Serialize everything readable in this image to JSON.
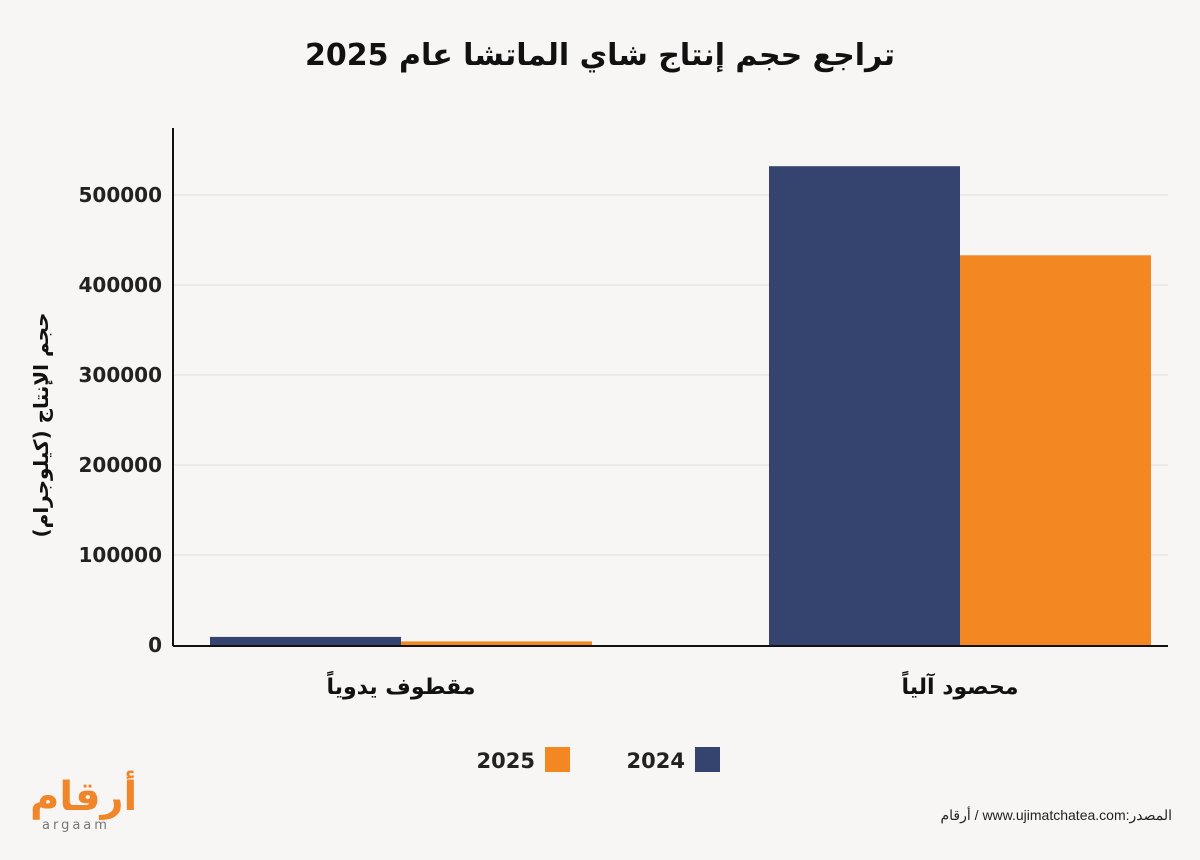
{
  "title": "تراجع حجم إنتاج شاي الماتشا عام 2025",
  "source": "المصدر:www.ujimatchatea.com / أرقام",
  "logo": {
    "arabic": "أرقام",
    "latin": "argaam"
  },
  "colors": {
    "2024": "#34446f",
    "2025": "#f38721",
    "grid": "#e2e0de",
    "axis": "#111111"
  },
  "chart_data": {
    "type": "bar",
    "title": "تراجع حجم إنتاج شاي الماتشا عام 2025",
    "xlabel": "",
    "ylabel": "حجم الإنتاج (كيلوجرام)",
    "categories": [
      "مقطوف يدوياً",
      "محصود آلياً"
    ],
    "series": [
      {
        "name": "2024",
        "values": [
          9000,
          532000
        ]
      },
      {
        "name": "2025",
        "values": [
          4000,
          433000
        ]
      }
    ],
    "yticks": [
      0,
      100000,
      200000,
      300000,
      400000,
      500000
    ],
    "ylim": [
      0,
      575000
    ],
    "grid": true,
    "legend": "bottom-center"
  }
}
